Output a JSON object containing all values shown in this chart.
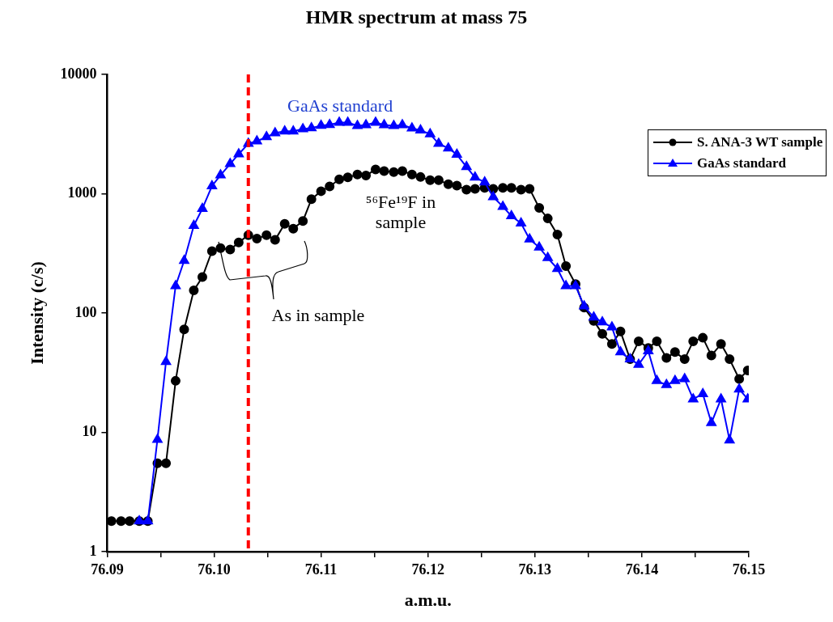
{
  "chart_data": {
    "type": "line",
    "title": "HMR spectrum at mass 75",
    "xlabel": "a.m.u.",
    "ylabel": "Intensity (c/s)",
    "log": "y",
    "grid": false,
    "legend": "top right",
    "line_style": "solid",
    "xlim": [
      76.09,
      76.15
    ],
    "xticks": [
      76.09,
      {
        "value": 76.095,
        "label": null
      },
      "76.10",
      {
        "value": 76.105,
        "label": null
      },
      76.11,
      {
        "value": 76.115,
        "label": null
      },
      76.12,
      {
        "value": 76.125,
        "label": null
      },
      76.13,
      {
        "value": 76.135,
        "label": null
      },
      76.14,
      {
        "value": 76.145,
        "label": null
      },
      76.15
    ],
    "ylim": [
      1,
      10000
    ],
    "yticks": [
      1,
      10,
      100,
      1000,
      10000
    ],
    "ref_lines": [
      {
        "axis": "x",
        "value": 76.1032,
        "color": "#ff0000",
        "line_style": "dashed"
      }
    ],
    "annotations": [
      "GaAs standard",
      "⁵⁶Fe¹⁹F in sample",
      "As in sample"
    ],
    "series": [
      {
        "name": "S. ANA-3 WT sample",
        "color": "#000000",
        "marker": "circle",
        "x": [
          76.0904,
          76.0913,
          76.0921,
          76.093,
          76.0938,
          76.0947,
          76.0955,
          76.0964,
          76.0972,
          76.0981,
          76.0989,
          76.0998,
          76.1006,
          76.1015,
          76.1023,
          76.1032,
          76.104,
          76.1049,
          76.1057,
          76.1066,
          76.1074,
          76.1083,
          76.1091,
          76.11,
          76.1108,
          76.1117,
          76.1125,
          76.1134,
          76.1142,
          76.1151,
          76.1159,
          76.1168,
          76.1176,
          76.1185,
          76.1193,
          76.1202,
          76.121,
          76.1219,
          76.1227,
          76.1236,
          76.1244,
          76.1253,
          76.1261,
          76.127,
          76.1278,
          76.1287,
          76.1295,
          76.1304,
          76.1312,
          76.1321,
          76.1329,
          76.1338,
          76.1346,
          76.1355,
          76.1363,
          76.1372,
          76.138,
          76.1389,
          76.1397,
          76.1406,
          76.1414,
          76.1423,
          76.1431,
          76.144,
          76.1448,
          76.1457,
          76.1465,
          76.1474,
          76.1482,
          76.1491,
          76.1499
        ],
        "values": [
          1.8,
          1.8,
          1.8,
          1.8,
          1.8,
          5.5,
          5.5,
          27,
          73,
          155,
          200,
          330,
          350,
          340,
          390,
          450,
          420,
          450,
          410,
          560,
          510,
          590,
          900,
          1050,
          1150,
          1320,
          1370,
          1450,
          1420,
          1600,
          1550,
          1520,
          1550,
          1450,
          1380,
          1300,
          1300,
          1200,
          1170,
          1080,
          1100,
          1120,
          1100,
          1120,
          1120,
          1080,
          1100,
          760,
          620,
          454,
          247,
          175,
          111,
          86,
          67,
          55,
          70,
          41,
          58,
          51,
          58,
          42,
          47,
          41,
          58,
          62,
          44,
          55,
          41,
          28,
          33
        ]
      },
      {
        "name": "GaAs standard",
        "color": "#0000ff",
        "marker": "triangle",
        "x": [
          76.093,
          76.0938,
          76.0947,
          76.0955,
          76.0964,
          76.0972,
          76.0981,
          76.0989,
          76.0998,
          76.1006,
          76.1015,
          76.1023,
          76.1032,
          76.104,
          76.1049,
          76.1057,
          76.1066,
          76.1074,
          76.1083,
          76.1091,
          76.11,
          76.1108,
          76.1117,
          76.1125,
          76.1134,
          76.1142,
          76.1151,
          76.1159,
          76.1168,
          76.1176,
          76.1185,
          76.1193,
          76.1202,
          76.121,
          76.1219,
          76.1227,
          76.1236,
          76.1244,
          76.1253,
          76.1261,
          76.127,
          76.1278,
          76.1287,
          76.1295,
          76.1304,
          76.1312,
          76.1321,
          76.1329,
          76.1338,
          76.1346,
          76.1355,
          76.1363,
          76.1372,
          76.138,
          76.1389,
          76.1397,
          76.1406,
          76.1414,
          76.1423,
          76.1431,
          76.144,
          76.1448,
          76.1457,
          76.1465,
          76.1474,
          76.1482,
          76.1491,
          76.1499
        ],
        "values": [
          1.8,
          1.8,
          8.7,
          39,
          169,
          275,
          540,
          750,
          1160,
          1430,
          1780,
          2150,
          2630,
          2760,
          2990,
          3230,
          3340,
          3340,
          3490,
          3550,
          3720,
          3780,
          3950,
          3950,
          3710,
          3770,
          3950,
          3770,
          3710,
          3770,
          3540,
          3400,
          3160,
          2630,
          2410,
          2130,
          1680,
          1370,
          1250,
          940,
          780,
          650,
          565,
          415,
          355,
          290,
          235,
          169,
          169,
          114,
          92,
          84,
          76,
          47,
          41,
          37,
          48,
          27,
          25,
          27,
          28,
          19,
          21,
          12,
          19,
          8.6,
          23,
          19
        ]
      }
    ]
  }
}
